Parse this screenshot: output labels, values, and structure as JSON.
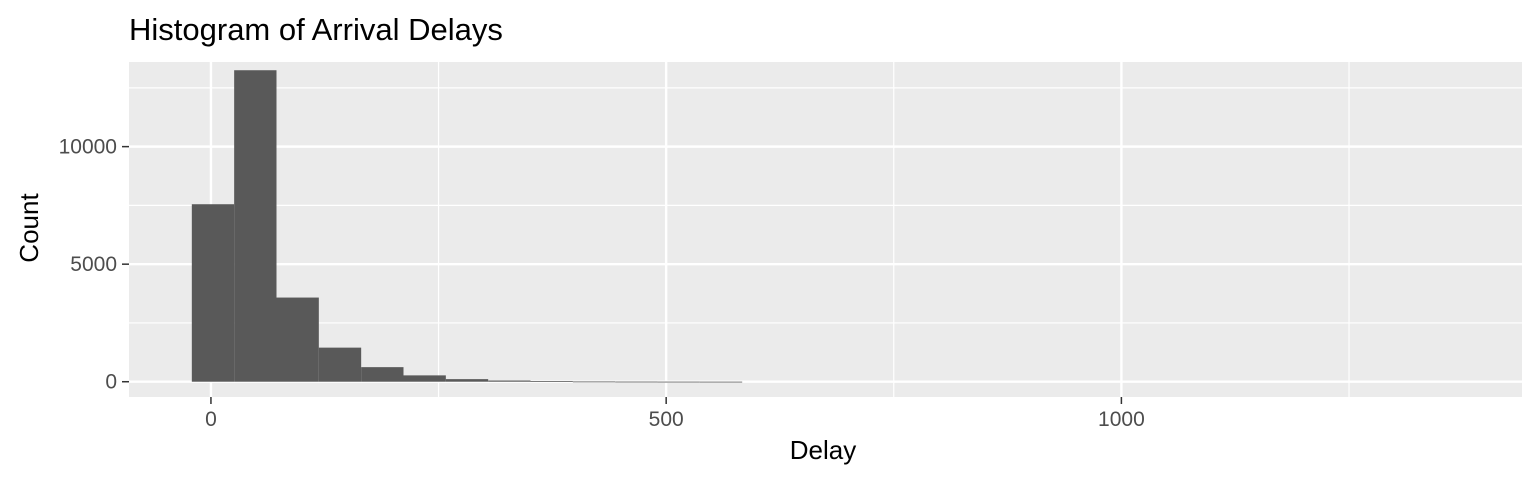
{
  "chart_data": {
    "type": "bar",
    "title": "Histogram of Arrival Delays",
    "xlabel": "Delay",
    "ylabel": "Count",
    "xlim": [
      -90,
      1440
    ],
    "ylim": [
      -650,
      13600
    ],
    "x_ticks": [
      0,
      500,
      1000
    ],
    "x_tick_labels": [
      "0",
      "500",
      "1000"
    ],
    "y_ticks": [
      0,
      5000,
      10000
    ],
    "y_tick_labels": [
      "0",
      "5000",
      "10000"
    ],
    "grid": true,
    "legend": "none",
    "bin_width": 46.5,
    "bins": [
      {
        "x0": -21.0,
        "x1": 25.5,
        "count": 7550
      },
      {
        "x0": 25.5,
        "x1": 72.0,
        "count": 13250
      },
      {
        "x0": 72.0,
        "x1": 118.5,
        "count": 3580
      },
      {
        "x0": 118.5,
        "x1": 165.0,
        "count": 1450
      },
      {
        "x0": 165.0,
        "x1": 211.5,
        "count": 620
      },
      {
        "x0": 211.5,
        "x1": 258.0,
        "count": 270
      },
      {
        "x0": 258.0,
        "x1": 304.5,
        "count": 110
      },
      {
        "x0": 304.5,
        "x1": 351.0,
        "count": 50
      },
      {
        "x0": 351.0,
        "x1": 397.5,
        "count": 25
      },
      {
        "x0": 397.5,
        "x1": 444.0,
        "count": 10
      },
      {
        "x0": 444.0,
        "x1": 490.5,
        "count": 5
      },
      {
        "x0": 490.5,
        "x1": 537.0,
        "count": 3
      },
      {
        "x0": 537.0,
        "x1": 583.5,
        "count": 2
      }
    ],
    "colors": {
      "panel": "#ebebeb",
      "grid": "#ffffff",
      "bar": "#595959",
      "tick": "#333333"
    }
  }
}
